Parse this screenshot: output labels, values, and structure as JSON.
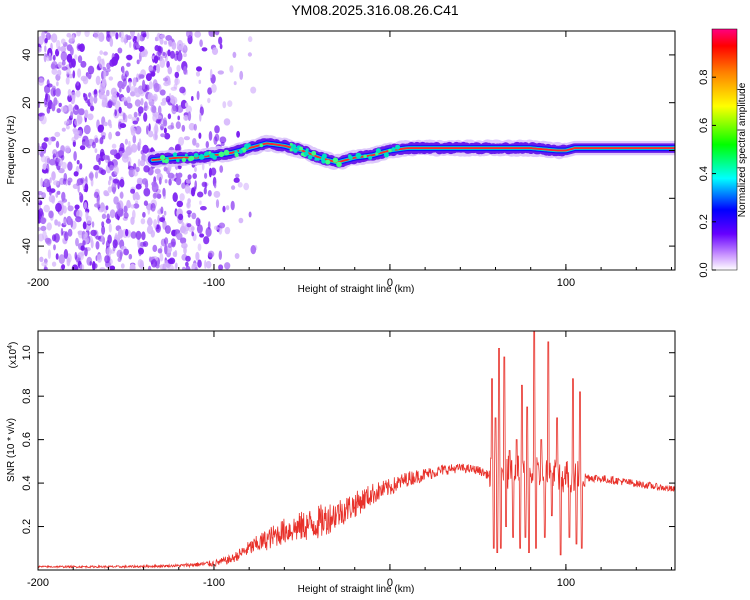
{
  "title": "YM08.2025.316.08.26.C41",
  "chart_data": [
    {
      "type": "heatmap",
      "name": "spectrogram",
      "xlabel": "Height of straight line (km)",
      "ylabel": "Frequency (Hz)",
      "xlim": [
        -200,
        162
      ],
      "ylim": [
        -50,
        50
      ],
      "xticks": [
        -200,
        -100,
        0,
        100
      ],
      "yticks": [
        -40,
        -20,
        0,
        20,
        40
      ],
      "ridge": {
        "x": [
          -135,
          -120,
          -110,
          -100,
          -90,
          -80,
          -70,
          -60,
          -50,
          -40,
          -30,
          -20,
          -10,
          0,
          10,
          20,
          40,
          60,
          80,
          95,
          100,
          105,
          130,
          162
        ],
        "freq": [
          -4,
          -3,
          -3,
          -2,
          -1,
          1,
          3,
          2,
          0,
          -3,
          -5,
          -3,
          -2,
          0,
          1,
          1,
          1,
          1,
          1,
          0,
          0,
          1,
          1,
          1
        ]
      },
      "colorbar": {
        "label": "Normalized spectral amplitude",
        "range": [
          0,
          1
        ],
        "ticks": [
          "0.0",
          "0.2",
          "0.4",
          "0.6",
          "0.8"
        ],
        "tick_values": [
          0.0,
          0.2,
          0.4,
          0.6,
          0.8
        ]
      }
    },
    {
      "type": "line",
      "name": "snr",
      "xlabel": "Height of straight line (km)",
      "ylabel": "SNR (10 * v/v)",
      "y_scale_label": "(x10",
      "y_scale_exp": "4",
      "y_scale_close": ")",
      "xlim": [
        -200,
        162
      ],
      "ylim": [
        0,
        1.1
      ],
      "xticks": [
        -200,
        -100,
        0,
        100
      ],
      "yticks": [
        "0.2",
        "0.4",
        "0.6",
        "0.8",
        "1.0"
      ],
      "ytick_values": [
        0.2,
        0.4,
        0.6,
        0.8,
        1.0
      ],
      "color": "#e8312a",
      "envelope": {
        "x": [
          -200,
          -150,
          -120,
          -100,
          -90,
          -80,
          -70,
          -60,
          -50,
          -40,
          -30,
          -20,
          -10,
          0,
          10,
          20,
          30,
          40,
          50,
          55,
          60,
          110,
          130,
          162
        ],
        "y": [
          0.015,
          0.015,
          0.02,
          0.03,
          0.05,
          0.1,
          0.14,
          0.18,
          0.2,
          0.22,
          0.26,
          0.3,
          0.35,
          0.38,
          0.42,
          0.44,
          0.46,
          0.47,
          0.46,
          0.44,
          0.45,
          0.43,
          0.41,
          0.37
        ]
      },
      "noise_bands": {
        "x": [
          -200,
          -120,
          -90,
          -70,
          -40,
          -20,
          0,
          20,
          40,
          60,
          110,
          162
        ],
        "amp": [
          0.004,
          0.006,
          0.02,
          0.05,
          0.08,
          0.06,
          0.04,
          0.03,
          0.02,
          0.02,
          0.02,
          0.015
        ]
      },
      "spikes": [
        {
          "x": 58,
          "y": 0.88
        },
        {
          "x": 59,
          "y": 0.1
        },
        {
          "x": 60,
          "y": 0.7
        },
        {
          "x": 61,
          "y": 0.08
        },
        {
          "x": 62,
          "y": 1.02
        },
        {
          "x": 63,
          "y": 0.1
        },
        {
          "x": 65,
          "y": 0.98
        },
        {
          "x": 66,
          "y": 0.2
        },
        {
          "x": 68,
          "y": 0.55
        },
        {
          "x": 70,
          "y": 0.15
        },
        {
          "x": 72,
          "y": 0.6
        },
        {
          "x": 74,
          "y": 0.1
        },
        {
          "x": 75,
          "y": 0.85
        },
        {
          "x": 77,
          "y": 0.15
        },
        {
          "x": 78,
          "y": 0.75
        },
        {
          "x": 79,
          "y": 0.08
        },
        {
          "x": 82,
          "y": 1.1
        },
        {
          "x": 83,
          "y": 0.1
        },
        {
          "x": 86,
          "y": 0.6
        },
        {
          "x": 88,
          "y": 0.15
        },
        {
          "x": 90,
          "y": 1.05
        },
        {
          "x": 92,
          "y": 0.25
        },
        {
          "x": 95,
          "y": 0.7
        },
        {
          "x": 97,
          "y": 0.07
        },
        {
          "x": 99,
          "y": 0.42
        },
        {
          "x": 102,
          "y": 0.15
        },
        {
          "x": 104,
          "y": 0.88
        },
        {
          "x": 106,
          "y": 0.12
        },
        {
          "x": 108,
          "y": 0.82
        },
        {
          "x": 109,
          "y": 0.1
        }
      ]
    }
  ]
}
